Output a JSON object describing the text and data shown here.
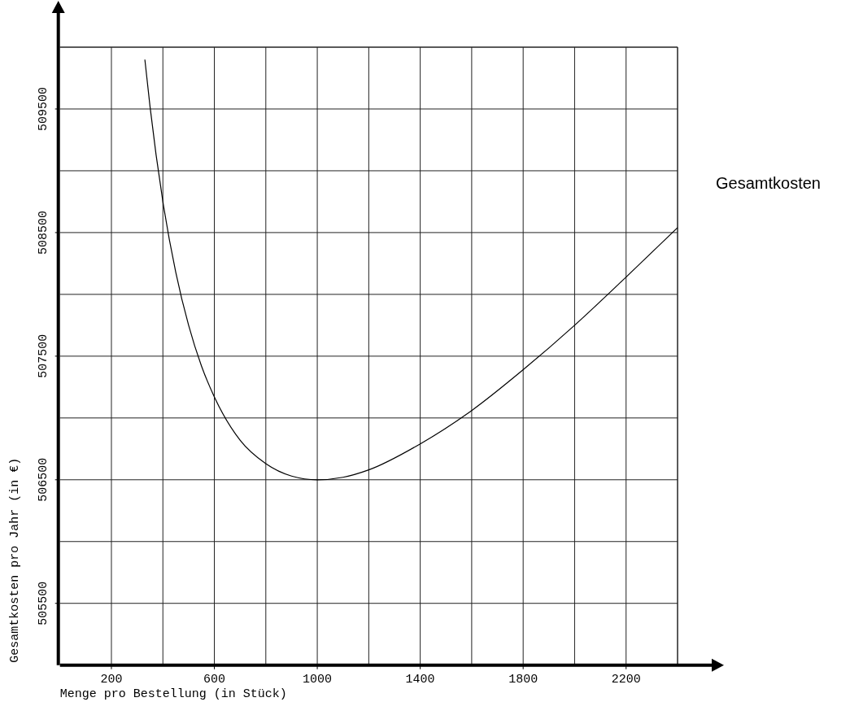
{
  "chart_data": {
    "type": "line",
    "xlabel": "Menge pro Bestellung (in Stück)",
    "ylabel": "Gesamtkosten pro Jahr (in €)",
    "xlim": [
      0,
      2400
    ],
    "xticks": [
      200,
      600,
      1000,
      1400,
      1800,
      2200
    ],
    "ylim": [
      505000,
      510000
    ],
    "yticks": [
      505500,
      506500,
      507500,
      508500,
      509500
    ],
    "grid": true,
    "legend": "right",
    "marker": "none",
    "line_style": "solid",
    "x": [
      330,
      350,
      400,
      450,
      500,
      550,
      600,
      700,
      800,
      900,
      1000,
      1100,
      1200,
      1400,
      1600,
      1800,
      2000,
      2200,
      2400
    ],
    "series": [
      {
        "name": "Gesamtkosten",
        "color": "#000000",
        "values": [
          509900,
          509520,
          508750,
          508180,
          507750,
          507420,
          507170,
          506820,
          506630,
          506530,
          506500,
          506520,
          506580,
          506790,
          507060,
          507390,
          507750,
          508140,
          508540
        ]
      }
    ]
  }
}
